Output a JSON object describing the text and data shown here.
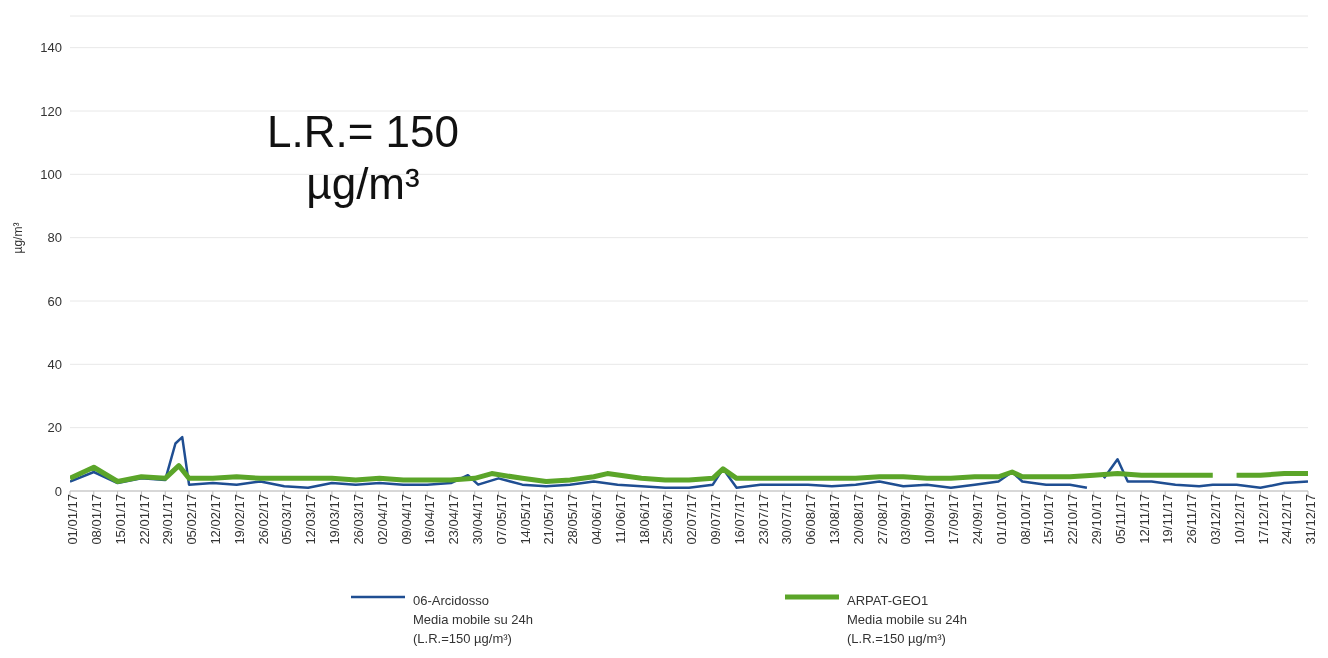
{
  "chart_data": {
    "type": "line",
    "ylabel": "µg/m³",
    "annotations": [
      "L.R.= 150 µg/m³"
    ],
    "ylim": [
      0,
      150
    ],
    "yticks": [
      0,
      20,
      40,
      60,
      80,
      100,
      120,
      140
    ],
    "grid": "y",
    "legend": "bottom",
    "marker": "none",
    "line_style": "solid",
    "xlim": [
      "--01-01",
      "--12-31"
    ],
    "xticks": [
      {
        "value": "--01-01",
        "label": "01/01/17"
      },
      {
        "value": "--01-08",
        "label": "08/01/17"
      },
      {
        "value": "--01-15",
        "label": "15/01/17"
      },
      {
        "value": "--01-22",
        "label": "22/01/17"
      },
      {
        "value": "--01-29",
        "label": "29/01/17"
      },
      {
        "value": "--02-05",
        "label": "05/02/17"
      },
      {
        "value": "--02-12",
        "label": "12/02/17"
      },
      {
        "value": "--02-19",
        "label": "19/02/17"
      },
      {
        "value": "--02-26",
        "label": "26/02/17"
      },
      {
        "value": "--03-05",
        "label": "05/03/17"
      },
      {
        "value": "--03-12",
        "label": "12/03/17"
      },
      {
        "value": "--03-19",
        "label": "19/03/17"
      },
      {
        "value": "--03-26",
        "label": "26/03/17"
      },
      {
        "value": "--04-02",
        "label": "02/04/17"
      },
      {
        "value": "--04-09",
        "label": "09/04/17"
      },
      {
        "value": "--04-16",
        "label": "16/04/17"
      },
      {
        "value": "--04-23",
        "label": "23/04/17"
      },
      {
        "value": "--04-30",
        "label": "30/04/17"
      },
      {
        "value": "--05-07",
        "label": "07/05/17"
      },
      {
        "value": "--05-14",
        "label": "14/05/17"
      },
      {
        "value": "--05-21",
        "label": "21/05/17"
      },
      {
        "value": "--05-28",
        "label": "28/05/17"
      },
      {
        "value": "--06-04",
        "label": "04/06/17"
      },
      {
        "value": "--06-11",
        "label": "11/06/17"
      },
      {
        "value": "--06-18",
        "label": "18/06/17"
      },
      {
        "value": "--06-25",
        "label": "25/06/17"
      },
      {
        "value": "--07-02",
        "label": "02/07/17"
      },
      {
        "value": "--07-09",
        "label": "09/07/17"
      },
      {
        "value": "--07-16",
        "label": "16/07/17"
      },
      {
        "value": "--07-23",
        "label": "23/07/17"
      },
      {
        "value": "--07-30",
        "label": "30/07/17"
      },
      {
        "value": "--08-06",
        "label": "06/08/17"
      },
      {
        "value": "--08-13",
        "label": "13/08/17"
      },
      {
        "value": "--08-20",
        "label": "20/08/17"
      },
      {
        "value": "--08-27",
        "label": "27/08/17"
      },
      {
        "value": "--09-03",
        "label": "03/09/17"
      },
      {
        "value": "--09-10",
        "label": "10/09/17"
      },
      {
        "value": "--09-17",
        "label": "17/09/17"
      },
      {
        "value": "--09-24",
        "label": "24/09/17"
      },
      {
        "value": "--10-01",
        "label": "01/10/17"
      },
      {
        "value": "--10-08",
        "label": "08/10/17"
      },
      {
        "value": "--10-15",
        "label": "15/10/17"
      },
      {
        "value": "--10-22",
        "label": "22/10/17"
      },
      {
        "value": "--10-29",
        "label": "29/10/17"
      },
      {
        "value": "--11-05",
        "label": "05/11/17"
      },
      {
        "value": "--11-12",
        "label": "12/11/17"
      },
      {
        "value": "--11-19",
        "label": "19/11/17"
      },
      {
        "value": "--11-26",
        "label": "26/11/17"
      },
      {
        "value": "--12-03",
        "label": "03/12/17"
      },
      {
        "value": "--12-10",
        "label": "10/12/17"
      },
      {
        "value": "--12-17",
        "label": "17/12/17"
      },
      {
        "value": "--12-24",
        "label": "24/12/17"
      },
      {
        "value": "--12-31",
        "label": "31/12/17"
      }
    ],
    "series": [
      {
        "name": "06-Arcidosso\nMedia mobile su 24h\n(L.R.=150 µg/m³)",
        "color": "#1f4e92",
        "x": [
          "--01-01",
          "--01-08",
          "--01-15",
          "--01-22",
          "--01-29",
          "--02-01",
          "--02-03",
          "--02-05",
          "--02-12",
          "--02-19",
          "--02-26",
          "--03-05",
          "--03-12",
          "--03-19",
          "--03-26",
          "--04-02",
          "--04-09",
          "--04-16",
          "--04-23",
          "--04-28",
          "--05-01",
          "--05-07",
          "--05-14",
          "--05-21",
          "--05-28",
          "--06-04",
          "--06-11",
          "--06-18",
          "--06-25",
          "--07-02",
          "--07-09",
          "--07-12",
          "--07-16",
          "--07-23",
          "--07-30",
          "--08-06",
          "--08-13",
          "--08-20",
          "--08-27",
          "--09-03",
          "--09-10",
          "--09-17",
          "--09-24",
          "--10-01",
          "--10-05",
          "--10-08",
          "--10-15",
          "--10-22",
          "--10-27",
          "--10-29",
          "--11-01",
          "--11-05",
          "--11-08",
          "--11-15",
          "--11-22",
          "--11-29",
          "--12-03",
          "--12-10",
          "--12-17",
          "--12-24",
          "--12-31"
        ],
        "values": [
          3,
          6,
          2.5,
          4,
          3.5,
          15,
          17,
          2,
          2.5,
          2,
          3,
          1.5,
          1,
          2.5,
          2,
          2.5,
          2,
          2,
          2.5,
          5,
          2,
          4,
          2,
          1.5,
          2,
          3,
          2,
          1.5,
          1,
          1,
          2,
          7,
          1,
          2,
          2,
          2,
          1.5,
          2,
          3,
          1.5,
          2,
          1,
          2,
          3,
          6,
          3,
          2,
          2,
          1,
          null,
          4,
          10,
          3,
          3,
          2,
          1.5,
          2,
          2,
          1,
          2.5,
          3
        ]
      },
      {
        "name": "ARPAT-GEO1\nMedia mobile su 24h\n(L.R.=150 µg/m³)",
        "color": "#5ba529",
        "x": [
          "--01-01",
          "--01-08",
          "--01-15",
          "--01-22",
          "--01-29",
          "--02-02",
          "--02-05",
          "--02-12",
          "--02-19",
          "--02-26",
          "--03-05",
          "--03-12",
          "--03-19",
          "--03-26",
          "--04-02",
          "--04-09",
          "--04-16",
          "--04-23",
          "--04-30",
          "--05-05",
          "--05-14",
          "--05-21",
          "--05-28",
          "--06-04",
          "--06-08",
          "--06-18",
          "--06-25",
          "--07-02",
          "--07-09",
          "--07-12",
          "--07-16",
          "--07-23",
          "--07-30",
          "--08-06",
          "--08-13",
          "--08-20",
          "--08-27",
          "--09-03",
          "--09-10",
          "--09-17",
          "--09-24",
          "--10-01",
          "--10-05",
          "--10-08",
          "--10-15",
          "--10-22",
          "--10-29",
          "--11-05",
          "--11-12",
          "--11-19",
          "--11-26",
          "--12-03",
          "--12-06",
          "--12-10",
          "--12-17",
          "--12-24",
          "--12-31"
        ],
        "values": [
          4,
          7.5,
          3,
          4.5,
          4,
          8,
          4,
          4,
          4.5,
          4,
          4,
          4,
          4,
          3.5,
          4,
          3.5,
          3.5,
          3.5,
          4,
          5.5,
          4,
          3,
          3.5,
          4.5,
          5.5,
          4,
          3.5,
          3.5,
          4,
          7,
          4,
          4,
          4,
          4,
          4,
          4,
          4.5,
          4.5,
          4,
          4,
          4.5,
          4.5,
          6,
          4.5,
          4.5,
          4.5,
          5,
          5.5,
          5,
          5,
          5,
          5,
          null,
          5,
          5,
          5.5,
          5.5
        ]
      }
    ]
  }
}
